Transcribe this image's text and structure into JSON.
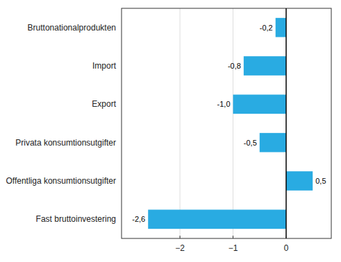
{
  "chart_data": {
    "type": "bar",
    "orientation": "horizontal",
    "categories": [
      "Fast bruttoinvestering",
      "Offentliga konsumtionsutgifter",
      "Privata konsumtionsutgifter",
      "Export",
      "Import",
      "Bruttonationalprodukten"
    ],
    "values": [
      -2.6,
      0.5,
      -0.5,
      -1.0,
      -0.8,
      -0.2
    ],
    "value_labels": [
      "-2,6",
      "0,5",
      "-0,5",
      "-1,0",
      "-0,8",
      "-0,2"
    ],
    "data_labels": true,
    "color": "#29abe2",
    "xlim": [
      -3.1,
      0.85
    ],
    "xticks": [
      {
        "value": -2,
        "label": "−2"
      },
      {
        "value": -1,
        "label": "−1"
      },
      0
    ],
    "grid": true
  }
}
